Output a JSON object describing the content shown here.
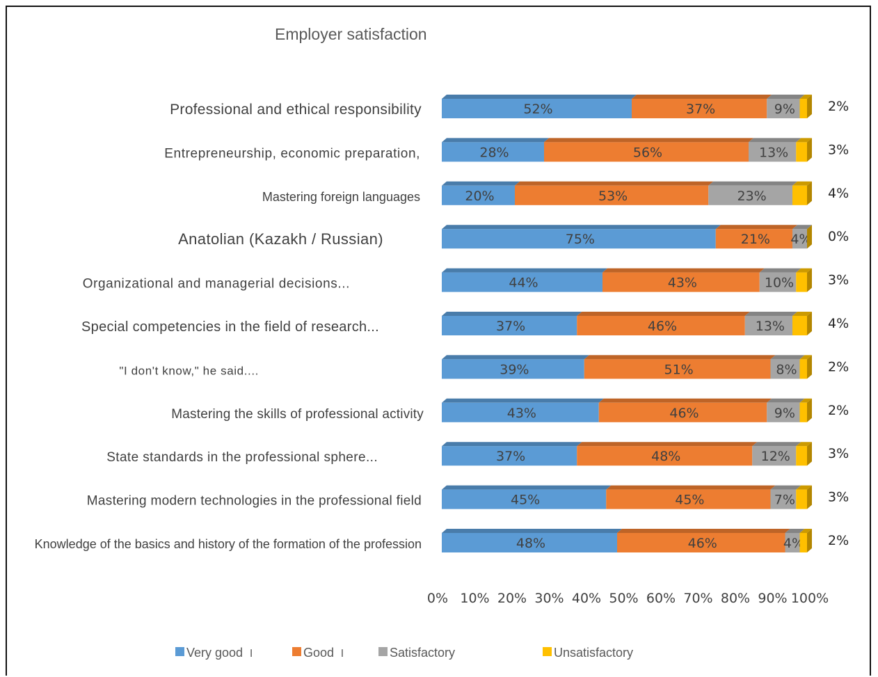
{
  "title": "Employer satisfaction",
  "chart_data": {
    "type": "bar",
    "orientation": "horizontal",
    "stacked": "percent",
    "title": "Employer satisfaction",
    "categories": [
      "Professional and ethical responsibility",
      "Entrepreneurship, economic preparation,",
      "Mastering foreign languages",
      "Anatolian (Kazakh / Russian)",
      "Organizational and managerial decisions...",
      "Special competencies in the field of research...",
      "\"I don't know,\" he said....",
      "Mastering the skills of professional activity",
      "State standards in the professional sphere...",
      "Mastering modern technologies in the professional field",
      "Knowledge of the basics and history of the formation of the profession"
    ],
    "series": [
      {
        "name": "Very good",
        "color": "#5B9BD5",
        "values": [
          52,
          28,
          20,
          75,
          44,
          37,
          39,
          43,
          37,
          45,
          48
        ]
      },
      {
        "name": "Good",
        "color": "#ED7D31",
        "values": [
          37,
          56,
          53,
          21,
          43,
          46,
          51,
          46,
          48,
          45,
          46
        ]
      },
      {
        "name": "Satisfactory",
        "color": "#A5A5A5",
        "values": [
          9,
          13,
          23,
          4,
          10,
          13,
          8,
          9,
          12,
          7,
          4
        ]
      },
      {
        "name": "Unsatisfactory",
        "color": "#FFC000",
        "values": [
          2,
          3,
          4,
          0,
          3,
          4,
          2,
          2,
          3,
          3,
          2
        ]
      }
    ],
    "x_ticks": [
      "0%",
      "10%",
      "20%",
      "30%",
      "40%",
      "50%",
      "60%",
      "70%",
      "80%",
      "90%",
      "100%"
    ],
    "xlim": [
      0,
      100
    ],
    "legend_position": "bottom",
    "legend_marks": [
      "ӏ",
      "ӏ",
      "",
      ""
    ],
    "grid": false
  }
}
